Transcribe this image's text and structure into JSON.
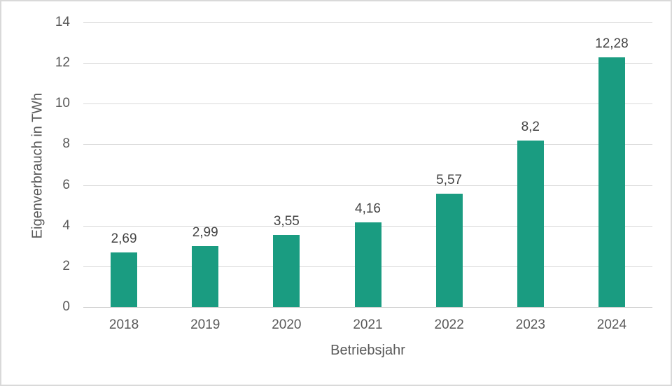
{
  "chart_data": {
    "type": "bar",
    "categories": [
      "2018",
      "2019",
      "2020",
      "2021",
      "2022",
      "2023",
      "2024"
    ],
    "values": [
      2.69,
      2.99,
      3.55,
      4.16,
      5.57,
      8.2,
      12.28
    ],
    "value_labels": [
      "2,69",
      "2,99",
      "3,55",
      "4,16",
      "5,57",
      "8,2",
      "12,28"
    ],
    "title": "",
    "xlabel": "Betriebsjahr",
    "ylabel": "Eigenverbrauch in TWh",
    "ylim": [
      0,
      14
    ],
    "yticks": [
      0,
      2,
      4,
      6,
      8,
      10,
      12,
      14
    ],
    "grid": true,
    "legend": "none",
    "decimal_separator": ",",
    "colors": {
      "bar": "#1a9c81",
      "axis_text": "#595959",
      "value_label_text": "#444444",
      "gridline": "#d9d9d9",
      "baseline": "#c9c9c9",
      "frame_border": "#d9d9d9",
      "background": "#ffffff"
    }
  }
}
